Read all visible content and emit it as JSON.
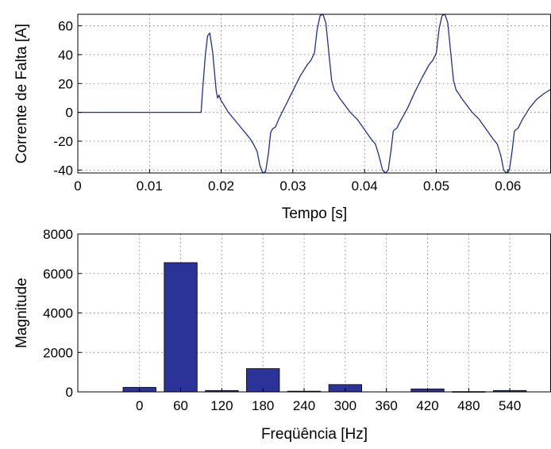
{
  "chart_data": [
    {
      "type": "line",
      "xlabel": "Tempo [s]",
      "ylabel": "Corrente de Falta [A]",
      "xlim": [
        0,
        0.066
      ],
      "ylim": [
        -42,
        68
      ],
      "xticks": [
        0,
        0.01,
        0.02,
        0.03,
        0.04,
        0.05,
        0.06
      ],
      "xtick_labels": [
        "0",
        "0.01",
        "0.02",
        "0.03",
        "0.04",
        "0.05",
        "0.06"
      ],
      "yticks": [
        -40,
        -20,
        0,
        20,
        40,
        60
      ],
      "ytick_labels": [
        "-40",
        "-20",
        "0",
        "20",
        "40",
        "60"
      ],
      "grid": true,
      "line_color": "#1f2f9a",
      "series": [
        {
          "x": [
            0,
            0.0172,
            0.0174,
            0.0178,
            0.0181,
            0.0184,
            0.0188,
            0.0193,
            0.0195,
            0.0197,
            0.0199,
            0.021,
            0.022,
            0.023,
            0.024,
            0.0245,
            0.025,
            0.0254,
            0.0258,
            0.0262,
            0.0266,
            0.0269,
            0.0271,
            0.0273,
            0.0276,
            0.028,
            0.029,
            0.03,
            0.031,
            0.032,
            0.0325,
            0.033,
            0.0334,
            0.0338,
            0.0342,
            0.0346,
            0.035,
            0.0354,
            0.0358,
            0.036,
            0.0365,
            0.038,
            0.039,
            0.04,
            0.041,
            0.0415,
            0.042,
            0.0425,
            0.0429,
            0.0433,
            0.0437,
            0.044,
            0.0442,
            0.0445,
            0.045,
            0.046,
            0.047,
            0.048,
            0.049,
            0.0495,
            0.05,
            0.0504,
            0.0508,
            0.0512,
            0.0516,
            0.052,
            0.0524,
            0.0528,
            0.053,
            0.0535,
            0.055,
            0.056,
            0.057,
            0.058,
            0.0585,
            0.059,
            0.0594,
            0.0598,
            0.0602,
            0.0606,
            0.0609,
            0.0611,
            0.0614,
            0.062,
            0.063,
            0.064,
            0.065,
            0.066
          ],
          "y": [
            0,
            0,
            15,
            40,
            53,
            55,
            42,
            15,
            10,
            12,
            9,
            0,
            -6,
            -12,
            -18,
            -22,
            -27,
            -37,
            -42,
            -41,
            -28,
            -14,
            -12,
            -11,
            -10,
            -5,
            5,
            15,
            25,
            33,
            36,
            41,
            58,
            67,
            68,
            62,
            42,
            22,
            15,
            14,
            10,
            0,
            -5,
            -12,
            -19,
            -22,
            -30,
            -40,
            -42,
            -40,
            -26,
            -13,
            -12,
            -11,
            -6,
            3,
            14,
            24,
            33,
            36,
            41,
            58,
            67,
            68,
            62,
            42,
            22,
            15,
            14,
            10,
            0,
            -5,
            -12,
            -19,
            -22,
            -30,
            -40,
            -42,
            -40,
            -26,
            -13,
            -12,
            -11,
            -5,
            3,
            9,
            13,
            16
          ]
        }
      ]
    },
    {
      "type": "bar",
      "xlabel": "Freqüência [Hz]",
      "ylabel": "Magnitude",
      "categories": [
        "0",
        "60",
        "120",
        "180",
        "240",
        "300",
        "360",
        "420",
        "480",
        "540"
      ],
      "values": [
        230,
        6550,
        70,
        1180,
        35,
        370,
        0,
        150,
        15,
        70
      ],
      "xlim": [
        -90,
        600
      ],
      "ylim": [
        0,
        8000
      ],
      "yticks": [
        0,
        2000,
        4000,
        6000,
        8000
      ],
      "ytick_labels": [
        "0",
        "2000",
        "4000",
        "6000",
        "8000"
      ],
      "grid": true,
      "bar_color": "#2b3399"
    }
  ]
}
